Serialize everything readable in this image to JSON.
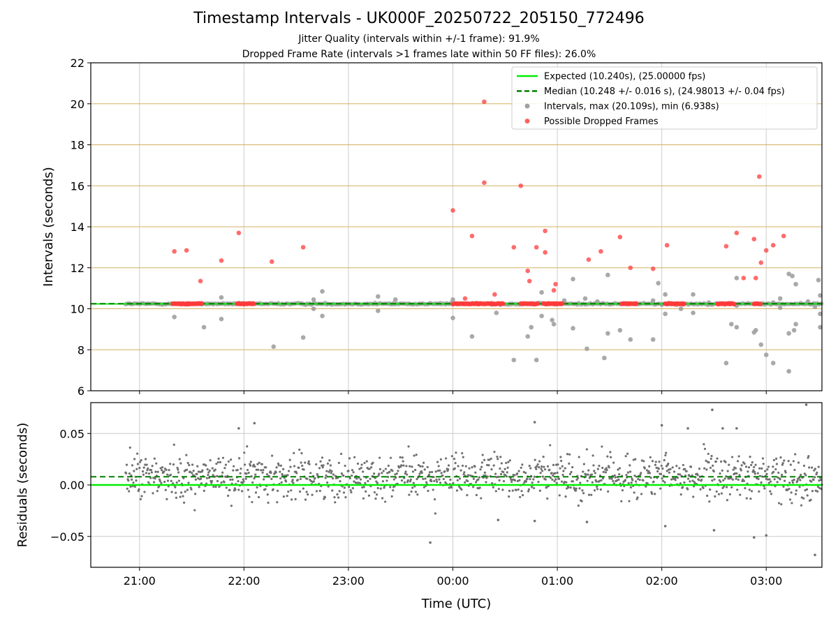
{
  "header": {
    "title": "Timestamp Intervals - UK000F_20250722_205150_772496",
    "subtitle_1": "Jitter Quality (intervals within +/-1 frame): 91.9%",
    "subtitle_2": "Dropped Frame Rate (intervals >1 frames late within 50 FF files): 26.0%"
  },
  "colors": {
    "expected": "#00ee00",
    "median": "#007f00",
    "intervals": "#a0a0a0",
    "dropped": "#ff3b3b",
    "hgrid_top": "#d4b060",
    "grid": "#cccccc",
    "residual_points": "#707070"
  },
  "chart_data": [
    {
      "type": "scatter",
      "ylabel": "Intervals (seconds)",
      "ylim": [
        6,
        22
      ],
      "yticks": [
        6,
        8,
        10,
        12,
        14,
        16,
        18,
        20,
        22
      ],
      "xlim": [
        "20:32",
        "03:32"
      ],
      "grid": true,
      "legend_position": "upper right",
      "legend": [
        {
          "label": "Expected (10.240s), (25.00000 fps)",
          "style": "line"
        },
        {
          "label": "Median (10.248 +/- 0.016 s), (24.98013 +/- 0.04 fps)",
          "style": "dashed"
        },
        {
          "label": "Intervals, max (20.109s), min (6.938s)",
          "style": "gray-dot"
        },
        {
          "label": "Possible Dropped Frames",
          "style": "red-dot"
        }
      ],
      "expected_value": 10.24,
      "median_value": 10.248,
      "dropped_points": [
        [
          "21:20",
          12.8
        ],
        [
          "21:27",
          12.85
        ],
        [
          "21:35",
          11.35
        ],
        [
          "21:47",
          12.35
        ],
        [
          "21:57",
          13.7
        ],
        [
          "22:16",
          12.3
        ],
        [
          "22:34",
          13.0
        ],
        [
          "00:00",
          14.8
        ],
        [
          "00:07",
          10.5
        ],
        [
          "00:11",
          13.55
        ],
        [
          "00:18",
          20.1
        ],
        [
          "00:18",
          16.15
        ],
        [
          "00:24",
          10.7
        ],
        [
          "00:35",
          13.0
        ],
        [
          "00:39",
          16.0
        ],
        [
          "00:43",
          11.85
        ],
        [
          "00:44",
          11.35
        ],
        [
          "00:48",
          13.0
        ],
        [
          "00:53",
          13.8
        ],
        [
          "00:53",
          12.75
        ],
        [
          "00:58",
          10.9
        ],
        [
          "00:59",
          11.2
        ],
        [
          "01:18",
          12.4
        ],
        [
          "01:25",
          12.8
        ],
        [
          "01:36",
          13.5
        ],
        [
          "01:42",
          12.0
        ],
        [
          "01:55",
          11.95
        ],
        [
          "02:03",
          13.1
        ],
        [
          "02:37",
          13.05
        ],
        [
          "02:43",
          13.7
        ],
        [
          "02:47",
          11.5
        ],
        [
          "02:53",
          13.4
        ],
        [
          "02:54",
          11.5
        ],
        [
          "02:56",
          16.45
        ],
        [
          "02:57",
          12.25
        ],
        [
          "03:00",
          12.85
        ],
        [
          "03:04",
          13.1
        ],
        [
          "03:10",
          13.55
        ]
      ],
      "dropped_clusters": [
        [
          "21:19",
          "21:36"
        ],
        [
          "21:56",
          "22:06"
        ],
        [
          "00:00",
          "00:29"
        ],
        [
          "00:39",
          "00:49"
        ],
        [
          "00:52",
          "01:03"
        ],
        [
          "01:37",
          "01:46"
        ],
        [
          "02:02",
          "02:13"
        ],
        [
          "02:32",
          "02:42"
        ],
        [
          "02:53",
          "02:57"
        ]
      ],
      "interval_points": [
        [
          "21:20",
          9.6
        ],
        [
          "21:37",
          9.1
        ],
        [
          "21:47",
          9.5
        ],
        [
          "21:47",
          10.55
        ],
        [
          "22:17",
          8.15
        ],
        [
          "22:34",
          8.6
        ],
        [
          "22:40",
          10.0
        ],
        [
          "22:45",
          10.85
        ],
        [
          "22:45",
          9.65
        ],
        [
          "22:40",
          10.45
        ],
        [
          "23:17",
          10.6
        ],
        [
          "23:17",
          9.9
        ],
        [
          "23:27",
          10.45
        ],
        [
          "00:00",
          9.55
        ],
        [
          "00:00",
          10.45
        ],
        [
          "00:11",
          8.65
        ],
        [
          "00:25",
          9.8
        ],
        [
          "00:35",
          7.5
        ],
        [
          "00:43",
          8.65
        ],
        [
          "00:45",
          9.1
        ],
        [
          "00:48",
          7.5
        ],
        [
          "00:51",
          9.65
        ],
        [
          "00:51",
          10.8
        ],
        [
          "00:57",
          9.45
        ],
        [
          "00:58",
          9.25
        ],
        [
          "01:04",
          10.4
        ],
        [
          "01:09",
          11.45
        ],
        [
          "01:09",
          9.05
        ],
        [
          "01:16",
          10.5
        ],
        [
          "01:17",
          8.05
        ],
        [
          "01:23",
          10.35
        ],
        [
          "01:27",
          7.6
        ],
        [
          "01:29",
          11.65
        ],
        [
          "01:29",
          8.8
        ],
        [
          "01:36",
          8.95
        ],
        [
          "01:42",
          8.5
        ],
        [
          "01:55",
          8.5
        ],
        [
          "01:55",
          10.4
        ],
        [
          "01:58",
          11.25
        ],
        [
          "02:00",
          10.2
        ],
        [
          "02:02",
          9.75
        ],
        [
          "02:02",
          10.7
        ],
        [
          "02:11",
          10.0
        ],
        [
          "02:18",
          9.8
        ],
        [
          "02:18",
          10.7
        ],
        [
          "02:27",
          10.3
        ],
        [
          "02:37",
          7.35
        ],
        [
          "02:40",
          9.25
        ],
        [
          "02:43",
          9.1
        ],
        [
          "02:43",
          11.5
        ],
        [
          "02:43",
          10.15
        ],
        [
          "02:53",
          8.85
        ],
        [
          "02:54",
          8.95
        ],
        [
          "02:57",
          8.25
        ],
        [
          "03:00",
          7.75
        ],
        [
          "03:04",
          7.35
        ],
        [
          "03:04",
          10.3
        ],
        [
          "03:08",
          10.05
        ],
        [
          "03:08",
          10.5
        ],
        [
          "03:13",
          8.8
        ],
        [
          "03:13",
          11.7
        ],
        [
          "03:15",
          11.6
        ],
        [
          "03:16",
          8.95
        ],
        [
          "03:17",
          9.25
        ],
        [
          "03:17",
          11.2
        ],
        [
          "03:13",
          6.95
        ],
        [
          "03:24",
          10.35
        ],
        [
          "03:30",
          11.4
        ],
        [
          "03:31",
          10.65
        ],
        [
          "03:31",
          9.75
        ],
        [
          "03:31",
          9.1
        ],
        [
          "03:28",
          10.1
        ]
      ]
    },
    {
      "type": "scatter",
      "xlabel": "Time (UTC)",
      "ylabel": "Residuals (seconds)",
      "ylim": [
        -0.08,
        0.08
      ],
      "yticks": [
        0.05,
        0.0,
        -0.05
      ],
      "yticklabels": [
        "0.05",
        "0.00",
        "−0.05"
      ],
      "xticklabels": [
        "21:00",
        "22:00",
        "23:00",
        "00:00",
        "01:00",
        "02:00",
        "03:00"
      ],
      "grid": true,
      "expected_residual": 0.0,
      "median_residual": 0.008,
      "outliers": [
        [
          "21:57",
          0.055
        ],
        [
          "22:06",
          0.06
        ],
        [
          "00:47",
          0.061
        ],
        [
          "02:00",
          0.058
        ],
        [
          "02:15",
          0.055
        ],
        [
          "02:29",
          0.073
        ],
        [
          "02:35",
          0.055
        ],
        [
          "02:43",
          0.055
        ],
        [
          "03:23",
          0.078
        ],
        [
          "23:47",
          -0.056
        ],
        [
          "02:53",
          -0.051
        ],
        [
          "03:00",
          -0.049
        ],
        [
          "03:28",
          -0.068
        ],
        [
          "02:30",
          -0.044
        ],
        [
          "02:02",
          -0.04
        ],
        [
          "00:47",
          -0.035
        ],
        [
          "01:17",
          -0.036
        ],
        [
          "00:26",
          -0.034
        ]
      ]
    }
  ]
}
